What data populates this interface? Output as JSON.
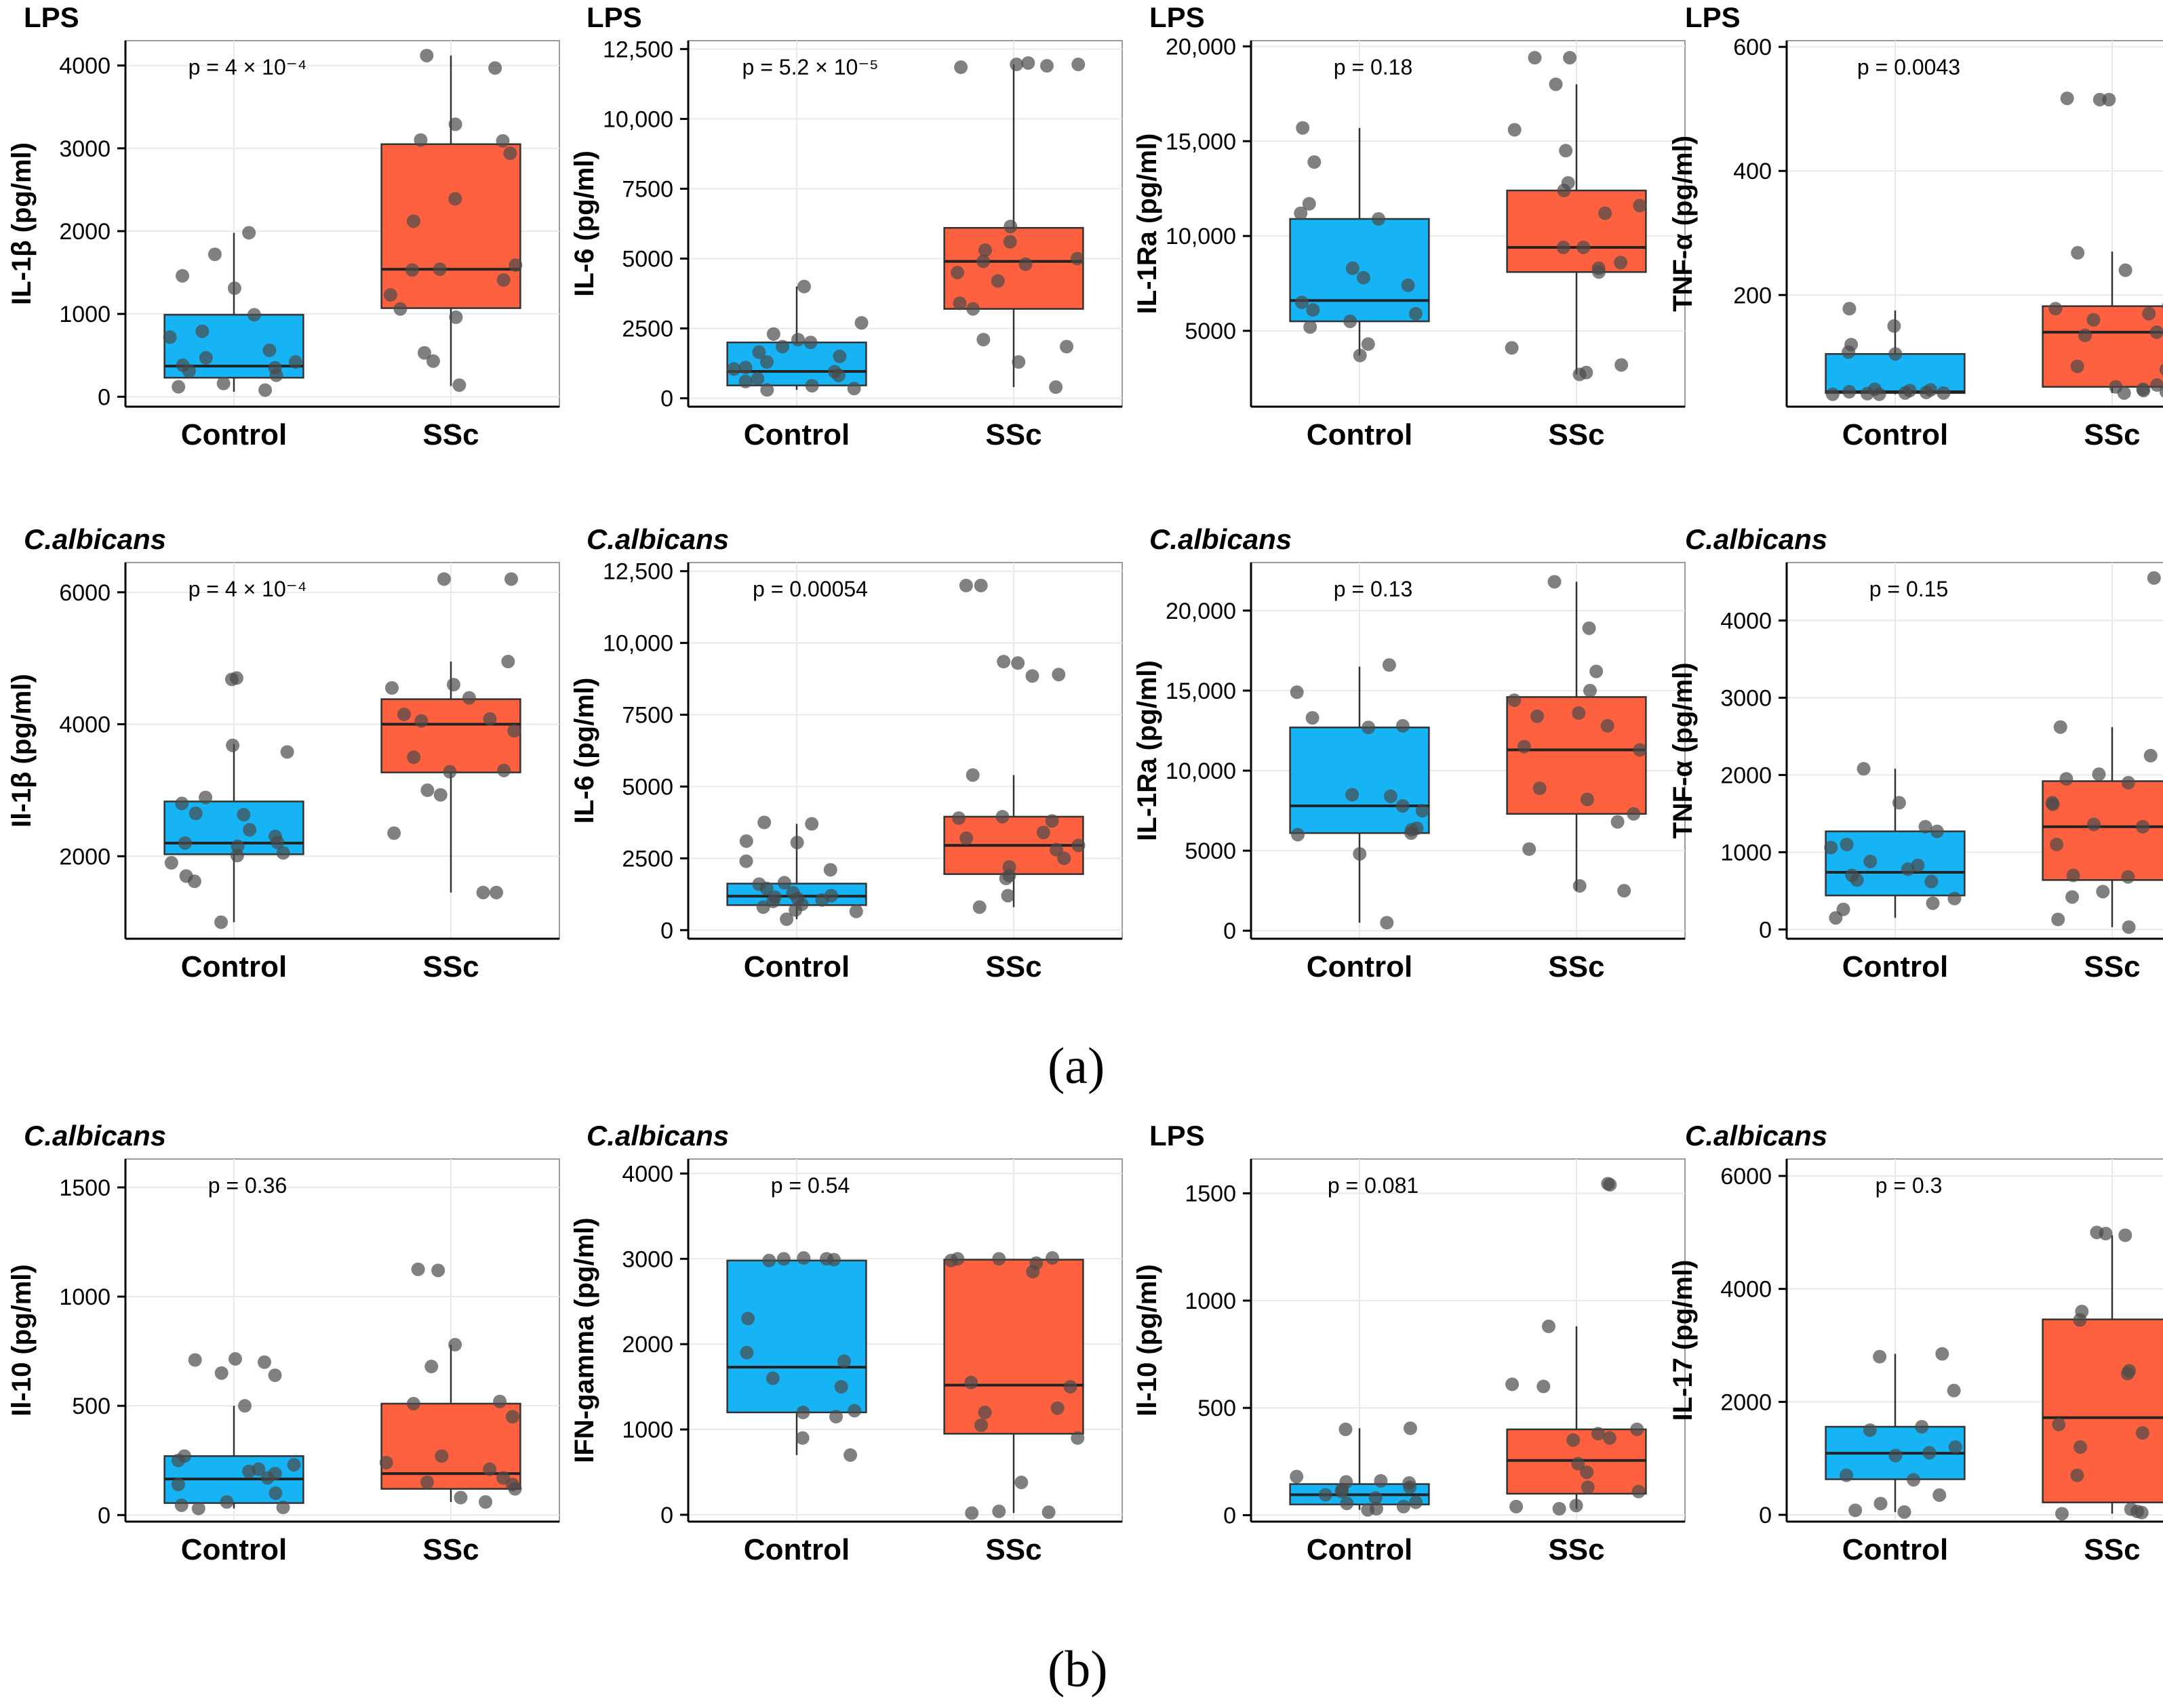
{
  "colors": {
    "control": "#16b4f5",
    "ssc": "#fe6140",
    "point": "#4a4a4a",
    "outline": "#333333",
    "grid": "#e9e9e9",
    "frame": "#9a9a9a"
  },
  "panel_labels": {
    "a": "(a)",
    "b": "(b)"
  },
  "chart_data": [
    {
      "type": "box",
      "title": "LPS",
      "title_italic": false,
      "ylabel": "IL-1β (pg/ml)",
      "ylim": [
        -120,
        4300
      ],
      "yticks": [
        0,
        1000,
        2000,
        3000,
        4000
      ],
      "ytick_labels": [
        "0",
        "1000",
        "2000",
        "3000",
        "4000"
      ],
      "p_label": "p = 4 × 10⁻⁴",
      "categories": [
        "Control",
        "SSc"
      ],
      "boxes": [
        {
          "q1": 230,
          "median": 370,
          "q3": 990,
          "whisker_low": 60,
          "whisker_high": 1980
        },
        {
          "q1": 1070,
          "median": 1540,
          "q3": 3050,
          "whisker_low": 130,
          "whisker_high": 4120
        }
      ],
      "points": [
        [
          80,
          120,
          160,
          260,
          310,
          350,
          380,
          420,
          470,
          560,
          720,
          790,
          990,
          1310,
          1460,
          1720,
          1980
        ],
        [
          140,
          430,
          530,
          960,
          1060,
          1230,
          1410,
          1530,
          1540,
          1590,
          2120,
          2390,
          2940,
          3090,
          3100,
          3290,
          3970,
          4120
        ]
      ]
    },
    {
      "type": "box",
      "title": "LPS",
      "title_italic": false,
      "ylabel": "IL-6 (pg/ml)",
      "ylim": [
        -300,
        12800
      ],
      "yticks": [
        0,
        2500,
        5000,
        7500,
        10000,
        12500
      ],
      "ytick_labels": [
        "0",
        "2500",
        "5000",
        "7500",
        "10,000",
        "12,500"
      ],
      "p_label": "p = 5.2 × 10⁻⁵",
      "categories": [
        "Control",
        "SSc"
      ],
      "boxes": [
        {
          "q1": 460,
          "median": 960,
          "q3": 2000,
          "whisker_low": 300,
          "whisker_high": 4000
        },
        {
          "q1": 3200,
          "median": 4900,
          "q3": 6100,
          "whisker_low": 400,
          "whisker_high": 11950
        }
      ],
      "points": [
        [
          300,
          350,
          450,
          600,
          700,
          820,
          950,
          1050,
          1100,
          1300,
          1500,
          1650,
          1850,
          2000,
          2100,
          2300,
          2700,
          4000
        ],
        [
          400,
          1300,
          1850,
          2100,
          3200,
          3400,
          4200,
          4500,
          4800,
          4900,
          5000,
          5300,
          5600,
          6150,
          11900,
          11950,
          11950,
          12000,
          11850
        ]
      ]
    },
    {
      "type": "box",
      "title": "LPS",
      "title_italic": false,
      "ylabel": "IL-1Ra (pg/ml)",
      "ylim": [
        1000,
        20300
      ],
      "yticks": [
        5000,
        10000,
        15000,
        20000
      ],
      "ytick_labels": [
        "5000",
        "10,000",
        "15,000",
        "20,000"
      ],
      "p_label": "p = 0.18",
      "categories": [
        "Control",
        "SSc"
      ],
      "boxes": [
        {
          "q1": 5500,
          "median": 6600,
          "q3": 10900,
          "whisker_low": 3700,
          "whisker_high": 15700
        },
        {
          "q1": 8100,
          "median": 9400,
          "q3": 12400,
          "whisker_low": 2700,
          "whisker_high": 18000
        }
      ],
      "points": [
        [
          3700,
          4300,
          5200,
          5500,
          5900,
          6100,
          6500,
          7400,
          7800,
          8300,
          10900,
          11200,
          11700,
          13900,
          15700
        ],
        [
          2700,
          2800,
          3200,
          4100,
          8100,
          8300,
          8600,
          9400,
          9400,
          11200,
          11600,
          12400,
          12800,
          14500,
          15600,
          18000,
          19400,
          19400
        ]
      ]
    },
    {
      "type": "box",
      "title": "LPS",
      "title_italic": false,
      "ylabel": "TNF-α (pg/ml)",
      "ylim": [
        20,
        610
      ],
      "yticks": [
        200,
        400,
        600
      ],
      "ytick_labels": [
        "200",
        "400",
        "600"
      ],
      "p_label": "p = 0.0043",
      "categories": [
        "Control",
        "SSc"
      ],
      "boxes": [
        {
          "q1": 42,
          "median": 44,
          "q3": 105,
          "whisker_low": 40,
          "whisker_high": 175
        },
        {
          "q1": 52,
          "median": 140,
          "q3": 182,
          "whisker_low": 42,
          "whisker_high": 270
        }
      ],
      "points": [
        [
          40,
          40,
          41,
          42,
          42,
          43,
          44,
          46,
          47,
          48,
          105,
          108,
          120,
          150,
          178
        ],
        [
          42,
          44,
          46,
          48,
          52,
          55,
          80,
          85,
          135,
          140,
          160,
          170,
          178,
          182,
          240,
          268,
          515,
          515,
          517
        ]
      ]
    },
    {
      "type": "box",
      "title": "C.albicans",
      "title_italic": true,
      "ylabel": "Il-1β (pg/ml)",
      "ylim": [
        750,
        6450
      ],
      "yticks": [
        2000,
        4000,
        6000
      ],
      "ytick_labels": [
        "2000",
        "4000",
        "6000"
      ],
      "p_label": "p = 4 × 10⁻⁴",
      "categories": [
        "Control",
        "SSc"
      ],
      "boxes": [
        {
          "q1": 2030,
          "median": 2200,
          "q3": 2830,
          "whisker_low": 1000,
          "whisker_high": 3700
        },
        {
          "q1": 3270,
          "median": 4000,
          "q3": 4380,
          "whisker_low": 1450,
          "whisker_high": 4950
        }
      ],
      "points": [
        [
          1000,
          1620,
          1700,
          1900,
          2010,
          2050,
          2150,
          2200,
          2210,
          2300,
          2400,
          2630,
          2650,
          2800,
          2890,
          3580,
          3680,
          4680,
          4700
        ],
        [
          1450,
          1450,
          2350,
          2930,
          3000,
          3280,
          3300,
          3500,
          3900,
          4050,
          4080,
          4150,
          4400,
          4550,
          4600,
          4950,
          6200,
          6200
        ]
      ]
    },
    {
      "type": "box",
      "title": "C.albicans",
      "title_italic": true,
      "ylabel": "IL-6 (pg/ml)",
      "ylim": [
        -300,
        12800
      ],
      "yticks": [
        0,
        2500,
        5000,
        7500,
        10000,
        12500
      ],
      "ytick_labels": [
        "0",
        "2500",
        "5000",
        "7500",
        "10,000",
        "12,500"
      ],
      "p_label": "p = 0.00054",
      "categories": [
        "Control",
        "SSc"
      ],
      "boxes": [
        {
          "q1": 870,
          "median": 1180,
          "q3": 1620,
          "whisker_low": 380,
          "whisker_high": 3700
        },
        {
          "q1": 1950,
          "median": 2950,
          "q3": 3950,
          "whisker_low": 800,
          "whisker_high": 5400
        }
      ],
      "points": [
        [
          380,
          650,
          700,
          800,
          900,
          1000,
          1050,
          1100,
          1150,
          1200,
          1300,
          1450,
          1600,
          1650,
          2100,
          2400,
          3050,
          3100,
          3700,
          3750
        ],
        [
          800,
          1200,
          1800,
          1900,
          2200,
          2500,
          2800,
          2950,
          3200,
          3400,
          3800,
          3900,
          3950,
          5400,
          8850,
          8900,
          9300,
          9350,
          12000,
          12000
        ]
      ]
    },
    {
      "type": "box",
      "title": "C.albicans",
      "title_italic": true,
      "ylabel": "IL-1Ra (pg/ml)",
      "ylim": [
        -500,
        23000
      ],
      "yticks": [
        0,
        5000,
        10000,
        15000,
        20000
      ],
      "ytick_labels": [
        "0",
        "5000",
        "10,000",
        "15,000",
        "20,000"
      ],
      "p_label": "p = 0.13",
      "categories": [
        "Control",
        "SSc"
      ],
      "boxes": [
        {
          "q1": 6100,
          "median": 7800,
          "q3": 12700,
          "whisker_low": 500,
          "whisker_high": 16500
        },
        {
          "q1": 7300,
          "median": 11300,
          "q3": 14600,
          "whisker_low": 2500,
          "whisker_high": 21800
        }
      ],
      "points": [
        [
          500,
          4800,
          6000,
          6100,
          6300,
          6400,
          7500,
          7800,
          8400,
          8500,
          12700,
          12800,
          13300,
          14900,
          16600
        ],
        [
          2500,
          2800,
          5100,
          6800,
          7300,
          8200,
          8900,
          11300,
          11500,
          12800,
          13400,
          13600,
          14400,
          15000,
          16200,
          18900,
          21800
        ]
      ]
    },
    {
      "type": "box",
      "title": "C.albicans",
      "title_italic": true,
      "ylabel": "TNF-α (pg/ml)",
      "ylim": [
        -120,
        4750
      ],
      "yticks": [
        0,
        1000,
        2000,
        3000,
        4000
      ],
      "ytick_labels": [
        "0",
        "1000",
        "2000",
        "3000",
        "4000"
      ],
      "p_label": "p = 0.15",
      "categories": [
        "Control",
        "SSc"
      ],
      "boxes": [
        {
          "q1": 440,
          "median": 740,
          "q3": 1270,
          "whisker_low": 150,
          "whisker_high": 2080
        },
        {
          "q1": 640,
          "median": 1330,
          "q3": 1920,
          "whisker_low": 30,
          "whisker_high": 2620
        }
      ],
      "points": [
        [
          150,
          260,
          340,
          400,
          620,
          640,
          700,
          780,
          830,
          880,
          1060,
          1100,
          1270,
          1330,
          1640,
          2080
        ],
        [
          30,
          130,
          420,
          490,
          680,
          700,
          1100,
          1150,
          1330,
          1360,
          1620,
          1640,
          1900,
          1950,
          2010,
          2250,
          2620,
          4540,
          4550
        ]
      ]
    },
    {
      "type": "box",
      "title": "C.albicans",
      "title_italic": true,
      "ylabel": "Il-10 (pg/ml)",
      "ylim": [
        -30,
        1630
      ],
      "yticks": [
        0,
        500,
        1000,
        1500
      ],
      "ytick_labels": [
        "0",
        "500",
        "1000",
        "1500"
      ],
      "p_label": "p = 0.36",
      "categories": [
        "Control",
        "SSc"
      ],
      "boxes": [
        {
          "q1": 55,
          "median": 165,
          "q3": 270,
          "whisker_low": 30,
          "whisker_high": 500
        },
        {
          "q1": 120,
          "median": 190,
          "q3": 510,
          "whisker_low": 60,
          "whisker_high": 780
        }
      ],
      "points": [
        [
          30,
          35,
          45,
          60,
          100,
          140,
          170,
          190,
          200,
          210,
          230,
          250,
          270,
          500,
          640,
          650,
          700,
          710,
          715
        ],
        [
          60,
          80,
          120,
          140,
          150,
          170,
          210,
          240,
          270,
          450,
          510,
          520,
          680,
          780,
          1120,
          1125
        ]
      ]
    },
    {
      "type": "box",
      "title": "C.albicans",
      "title_italic": true,
      "ylabel": "IFN-gamma (pg/ml)",
      "ylim": [
        -80,
        4170
      ],
      "yticks": [
        0,
        1000,
        2000,
        3000,
        4000
      ],
      "ytick_labels": [
        "0",
        "1000",
        "2000",
        "3000",
        "4000"
      ],
      "p_label": "p = 0.54",
      "categories": [
        "Control",
        "SSc"
      ],
      "boxes": [
        {
          "q1": 1200,
          "median": 1730,
          "q3": 2980,
          "whisker_low": 700,
          "whisker_high": 2990
        },
        {
          "q1": 950,
          "median": 1520,
          "q3": 2990,
          "whisker_low": 20,
          "whisker_high": 3000
        }
      ],
      "points": [
        [
          700,
          900,
          1150,
          1200,
          1220,
          1500,
          1600,
          1800,
          1900,
          2300,
          2980,
          2990,
          3000,
          3000,
          3010
        ],
        [
          20,
          30,
          40,
          380,
          900,
          1050,
          1200,
          1250,
          1500,
          1550,
          2850,
          2950,
          2980,
          3000,
          3000,
          3010
        ]
      ]
    },
    {
      "type": "box",
      "title": "LPS",
      "title_italic": false,
      "ylabel": "Il-10 (pg/ml)",
      "ylim": [
        -30,
        1660
      ],
      "yticks": [
        0,
        500,
        1000,
        1500
      ],
      "ytick_labels": [
        "0",
        "500",
        "1000",
        "1500"
      ],
      "p_label": "p = 0.081",
      "categories": [
        "Control",
        "SSc"
      ],
      "boxes": [
        {
          "q1": 50,
          "median": 95,
          "q3": 145,
          "whisker_low": 25,
          "whisker_high": 405
        },
        {
          "q1": 100,
          "median": 255,
          "q3": 400,
          "whisker_low": 30,
          "whisker_high": 880
        }
      ],
      "points": [
        [
          25,
          30,
          40,
          55,
          60,
          80,
          95,
          110,
          120,
          130,
          150,
          155,
          160,
          180,
          400,
          405
        ],
        [
          30,
          40,
          45,
          110,
          130,
          200,
          240,
          350,
          360,
          380,
          400,
          600,
          610,
          880,
          1540,
          1545
        ]
      ]
    },
    {
      "type": "box",
      "title": "C.albicans",
      "title_italic": true,
      "ylabel": "IL-17 (pg/ml)",
      "ylim": [
        -120,
        6300
      ],
      "yticks": [
        0,
        2000,
        4000,
        6000
      ],
      "ytick_labels": [
        "0",
        "2000",
        "4000",
        "6000"
      ],
      "p_label": "p = 0.3",
      "categories": [
        "Control",
        "SSc"
      ],
      "boxes": [
        {
          "q1": 630,
          "median": 1090,
          "q3": 1560,
          "whisker_low": 50,
          "whisker_high": 2850
        },
        {
          "q1": 220,
          "median": 1720,
          "q3": 3460,
          "whisker_low": 20,
          "whisker_high": 4950
        }
      ],
      "points": [
        [
          50,
          80,
          200,
          350,
          620,
          700,
          1050,
          1100,
          1200,
          1500,
          1560,
          2200,
          2800,
          2850
        ],
        [
          20,
          40,
          60,
          100,
          700,
          1200,
          1450,
          1600,
          2500,
          2550,
          3450,
          3460,
          3600,
          4950,
          4980,
          5000
        ]
      ]
    }
  ]
}
